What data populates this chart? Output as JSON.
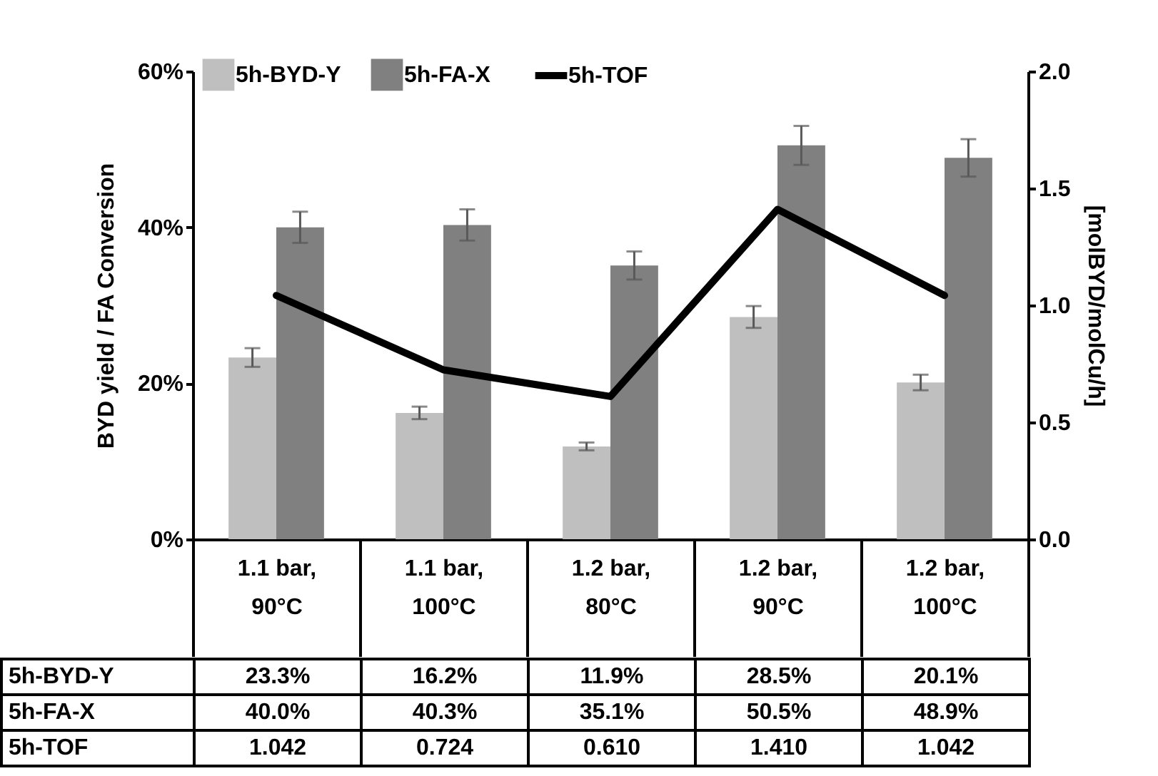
{
  "chart_data": {
    "type": "bar",
    "ylabel": "BYD yield / FA Conversion",
    "y2label": "[molBYD/molCu/h]",
    "categories": [
      "1.1 bar, 90°C",
      "1.1 bar, 100°C",
      "1.2 bar, 80°C",
      "1.2 bar, 90°C",
      "1.2 bar, 100°C"
    ],
    "series": [
      {
        "name": "5h-BYD-Y",
        "color": "#bfbfbf",
        "values": [
          23.3,
          16.2,
          11.9,
          28.5,
          20.1
        ],
        "errors": [
          1.2,
          0.8,
          0.5,
          1.4,
          1.0
        ],
        "value_labels": [
          "23.3%",
          "16.2%",
          "11.9%",
          "28.5%",
          "20.1%"
        ]
      },
      {
        "name": "5h-FA-X",
        "color": "#808080",
        "values": [
          40.0,
          40.3,
          35.1,
          50.5,
          48.9
        ],
        "errors": [
          2.0,
          2.0,
          1.8,
          2.5,
          2.4
        ],
        "value_labels": [
          "40.0%",
          "40.3%",
          "35.1%",
          "50.5%",
          "48.9%"
        ]
      },
      {
        "name": "5h-TOF",
        "type": "line",
        "axis": "y2",
        "color": "#000000",
        "values": [
          1.042,
          0.724,
          0.61,
          1.41,
          1.042
        ],
        "value_labels": [
          "1.042",
          "0.724",
          "0.610",
          "1.410",
          "1.042"
        ]
      }
    ],
    "ylim": [
      0,
      60
    ],
    "yticks": [
      {
        "value": 0,
        "label": "0%"
      },
      {
        "value": 20,
        "label": "20%"
      },
      {
        "value": 40,
        "label": "40%"
      },
      {
        "value": 60,
        "label": "60%"
      }
    ],
    "y2lim": [
      0,
      2
    ],
    "y2ticks": [
      {
        "value": 0,
        "label": "0.0"
      },
      {
        "value": 0.5,
        "label": "0.5"
      },
      {
        "value": 1,
        "label": "1.0"
      },
      {
        "value": 1.5,
        "label": "1.5"
      },
      {
        "value": 2,
        "label": "2.0"
      }
    ],
    "legend": "top"
  }
}
